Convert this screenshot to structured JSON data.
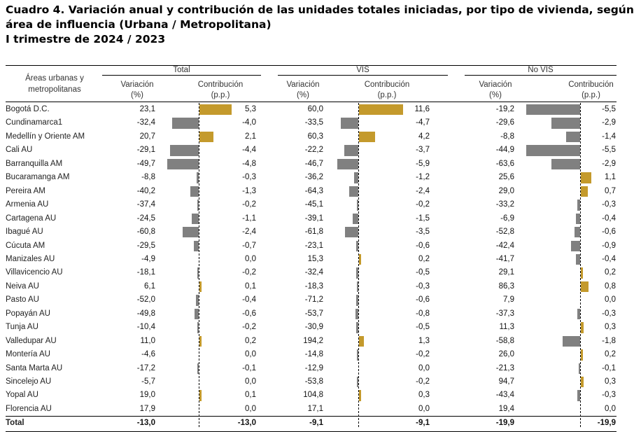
{
  "title": {
    "line1": "Cuadro 4. Variación anual y contribución de las unidades totales iniciadas, por tipo de vivienda, según",
    "line2": "área de influencia (Urbana / Metropolitana)",
    "line3": "I trimestre de 2024 / 2023"
  },
  "header": {
    "areas_label_line1": "Áreas urbanas y",
    "areas_label_line2": "metropolitanas",
    "groups": [
      "Total",
      "VIS",
      "No VIS"
    ],
    "variacion_line1": "Variación",
    "variacion_line2": "(%)",
    "contribucion_line1": "Contribución",
    "contribucion_line2": "(p.p.)"
  },
  "colors": {
    "negative": "#808080",
    "positive": "#c49a2c"
  },
  "rows": [
    {
      "name": "Bogotá D.C.",
      "total_var": "23,1",
      "total_con": "5,3",
      "vis_var": "60,0",
      "vis_con": "11,6",
      "novis_var": "-19,2",
      "novis_con": "-5,5"
    },
    {
      "name": "Cundinamarca1",
      "total_var": "-32,4",
      "total_con": "-4,0",
      "vis_var": "-33,5",
      "vis_con": "-4,7",
      "novis_var": "-29,6",
      "novis_con": "-2,9"
    },
    {
      "name": "Medellín y Oriente AM",
      "total_var": "20,7",
      "total_con": "2,1",
      "vis_var": "60,3",
      "vis_con": "4,2",
      "novis_var": "-8,8",
      "novis_con": "-1,4"
    },
    {
      "name": "Cali AU",
      "total_var": "-29,1",
      "total_con": "-4,4",
      "vis_var": "-22,2",
      "vis_con": "-3,7",
      "novis_var": "-44,9",
      "novis_con": "-5,5"
    },
    {
      "name": "Barranquilla AM",
      "total_var": "-49,7",
      "total_con": "-4,8",
      "vis_var": "-46,7",
      "vis_con": "-5,9",
      "novis_var": "-63,6",
      "novis_con": "-2,9"
    },
    {
      "name": "Bucaramanga AM",
      "total_var": "-8,8",
      "total_con": "-0,3",
      "vis_var": "-36,2",
      "vis_con": "-1,2",
      "novis_var": "25,6",
      "novis_con": "1,1"
    },
    {
      "name": "Pereira  AM",
      "total_var": "-40,2",
      "total_con": "-1,3",
      "vis_var": "-64,3",
      "vis_con": "-2,4",
      "novis_var": "29,0",
      "novis_con": "0,7"
    },
    {
      "name": "Armenia  AU",
      "total_var": "-37,4",
      "total_con": "-0,2",
      "vis_var": "-45,1",
      "vis_con": "-0,2",
      "novis_var": "-33,2",
      "novis_con": "-0,3"
    },
    {
      "name": "Cartagena AU",
      "total_var": "-24,5",
      "total_con": "-1,1",
      "vis_var": "-39,1",
      "vis_con": "-1,5",
      "novis_var": "-6,9",
      "novis_con": "-0,4"
    },
    {
      "name": "Ibagué AU",
      "total_var": "-60,8",
      "total_con": "-2,4",
      "vis_var": "-61,8",
      "vis_con": "-3,5",
      "novis_var": "-52,8",
      "novis_con": "-0,6"
    },
    {
      "name": "Cúcuta AM",
      "total_var": "-29,5",
      "total_con": "-0,7",
      "vis_var": "-23,1",
      "vis_con": "-0,6",
      "novis_var": "-42,4",
      "novis_con": "-0,9"
    },
    {
      "name": "Manizales AU",
      "total_var": "-4,9",
      "total_con": "0,0",
      "vis_var": "15,3",
      "vis_con": "0,2",
      "novis_var": "-41,7",
      "novis_con": "-0,4"
    },
    {
      "name": "Villavicencio AU",
      "total_var": "-18,1",
      "total_con": "-0,2",
      "vis_var": "-32,4",
      "vis_con": "-0,5",
      "novis_var": "29,1",
      "novis_con": "0,2"
    },
    {
      "name": "Neiva AU",
      "total_var": "6,1",
      "total_con": "0,1",
      "vis_var": "-18,3",
      "vis_con": "-0,3",
      "novis_var": "86,3",
      "novis_con": "0,8"
    },
    {
      "name": "Pasto AU",
      "total_var": "-52,0",
      "total_con": "-0,4",
      "vis_var": "-71,2",
      "vis_con": "-0,6",
      "novis_var": "7,9",
      "novis_con": "0,0"
    },
    {
      "name": "Popayán AU",
      "total_var": "-49,8",
      "total_con": "-0,6",
      "vis_var": "-53,7",
      "vis_con": "-0,8",
      "novis_var": "-37,3",
      "novis_con": "-0,3"
    },
    {
      "name": "Tunja AU",
      "total_var": "-10,4",
      "total_con": "-0,2",
      "vis_var": "-30,9",
      "vis_con": "-0,5",
      "novis_var": "11,3",
      "novis_con": "0,3"
    },
    {
      "name": "Valledupar AU",
      "total_var": "11,0",
      "total_con": "0,2",
      "vis_var": "194,2",
      "vis_con": "1,3",
      "novis_var": "-58,8",
      "novis_con": "-1,8"
    },
    {
      "name": "Montería AU",
      "total_var": "-4,6",
      "total_con": "0,0",
      "vis_var": "-14,8",
      "vis_con": "-0,2",
      "novis_var": "26,0",
      "novis_con": "0,2"
    },
    {
      "name": "Santa Marta AU",
      "total_var": "-17,2",
      "total_con": "-0,1",
      "vis_var": "-12,9",
      "vis_con": "0,0",
      "novis_var": "-21,3",
      "novis_con": "-0,1"
    },
    {
      "name": "Sincelejo AU",
      "total_var": "-5,7",
      "total_con": "0,0",
      "vis_var": "-53,8",
      "vis_con": "-0,2",
      "novis_var": "94,7",
      "novis_con": "0,3"
    },
    {
      "name": "Yopal AU",
      "total_var": "19,0",
      "total_con": "0,1",
      "vis_var": "104,8",
      "vis_con": "0,3",
      "novis_var": "-43,4",
      "novis_con": "-0,3"
    },
    {
      "name": "Florencia AU",
      "total_var": "17,9",
      "total_con": "0,0",
      "vis_var": "17,1",
      "vis_con": "0,0",
      "novis_var": "19,4",
      "novis_con": "0,0"
    }
  ],
  "total_row": {
    "name": "Total",
    "total_var": "-13,0",
    "total_con": "-13,0",
    "vis_var": "-9,1",
    "vis_con": "-9,1",
    "novis_var": "-19,9",
    "novis_con": "-19,9"
  }
}
